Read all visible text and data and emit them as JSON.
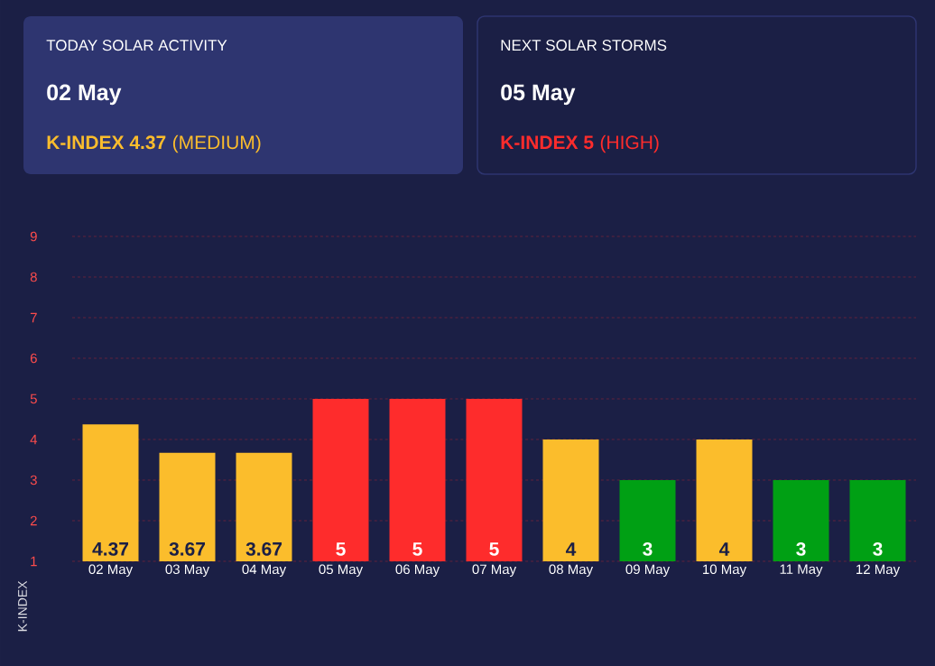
{
  "chart_data": {
    "type": "bar",
    "ylabel": "K-INDEX",
    "categories": [
      "02 May",
      "03 May",
      "04 May",
      "05 May",
      "06 May",
      "07 May",
      "08 May",
      "09 May",
      "10 May",
      "11 May",
      "12 May"
    ],
    "values": [
      4.37,
      3.67,
      3.67,
      5,
      5,
      5,
      4,
      3,
      4,
      3,
      3
    ],
    "value_labels": [
      "4.37",
      "3.67",
      "3.67",
      "5",
      "5",
      "5",
      "4",
      "3",
      "4",
      "3",
      "3"
    ],
    "colors": [
      "#fbbd2c",
      "#fbbd2c",
      "#fbbd2c",
      "#fe2c2c",
      "#fe2c2c",
      "#fe2c2c",
      "#fbbd2c",
      "#00a014",
      "#fbbd2c",
      "#00a014",
      "#00a014"
    ],
    "ylim": [
      1,
      9
    ],
    "yticks": [
      1,
      2,
      3,
      4,
      5,
      6,
      7,
      8,
      9
    ],
    "grid": "y",
    "annotations": [
      "TODAY SOLAR ACTIVITY",
      "02 May",
      "K-INDEX 4.37",
      "(MEDIUM)",
      "NEXT SOLAR STORMS",
      "05 May",
      "K-INDEX 5",
      "(HIGH)"
    ]
  }
}
